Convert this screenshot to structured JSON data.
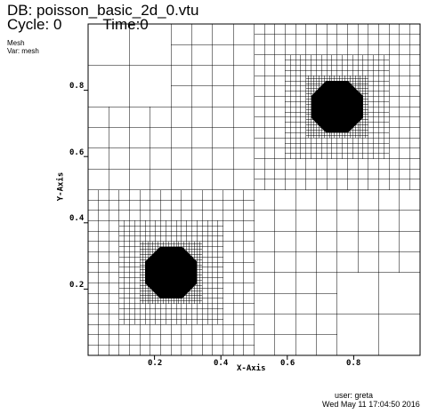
{
  "header": {
    "db_title": "DB: poisson_basic_2d_0.vtu",
    "cycle": "Cycle: 0",
    "time": "Time:0"
  },
  "plot": {
    "name": "Mesh",
    "var": "Var: mesh"
  },
  "axes": {
    "x_label": "X-Axis",
    "y_label": "Y-Axis",
    "x_ticks": [
      "0.2",
      "0.4",
      "0.6",
      "0.8"
    ],
    "y_ticks": [
      "0.2",
      "0.4",
      "0.6",
      "0.8"
    ],
    "x_range": [
      0,
      1
    ],
    "y_range": [
      0,
      1
    ]
  },
  "mesh": {
    "refinement_centers": [
      [
        0.25,
        0.25
      ],
      [
        0.75,
        0.75
      ]
    ],
    "line_color": "#000000",
    "background": "#ffffff"
  },
  "footer": {
    "user": "user: greta",
    "date": "Wed May 11 17:04:50 2016"
  }
}
